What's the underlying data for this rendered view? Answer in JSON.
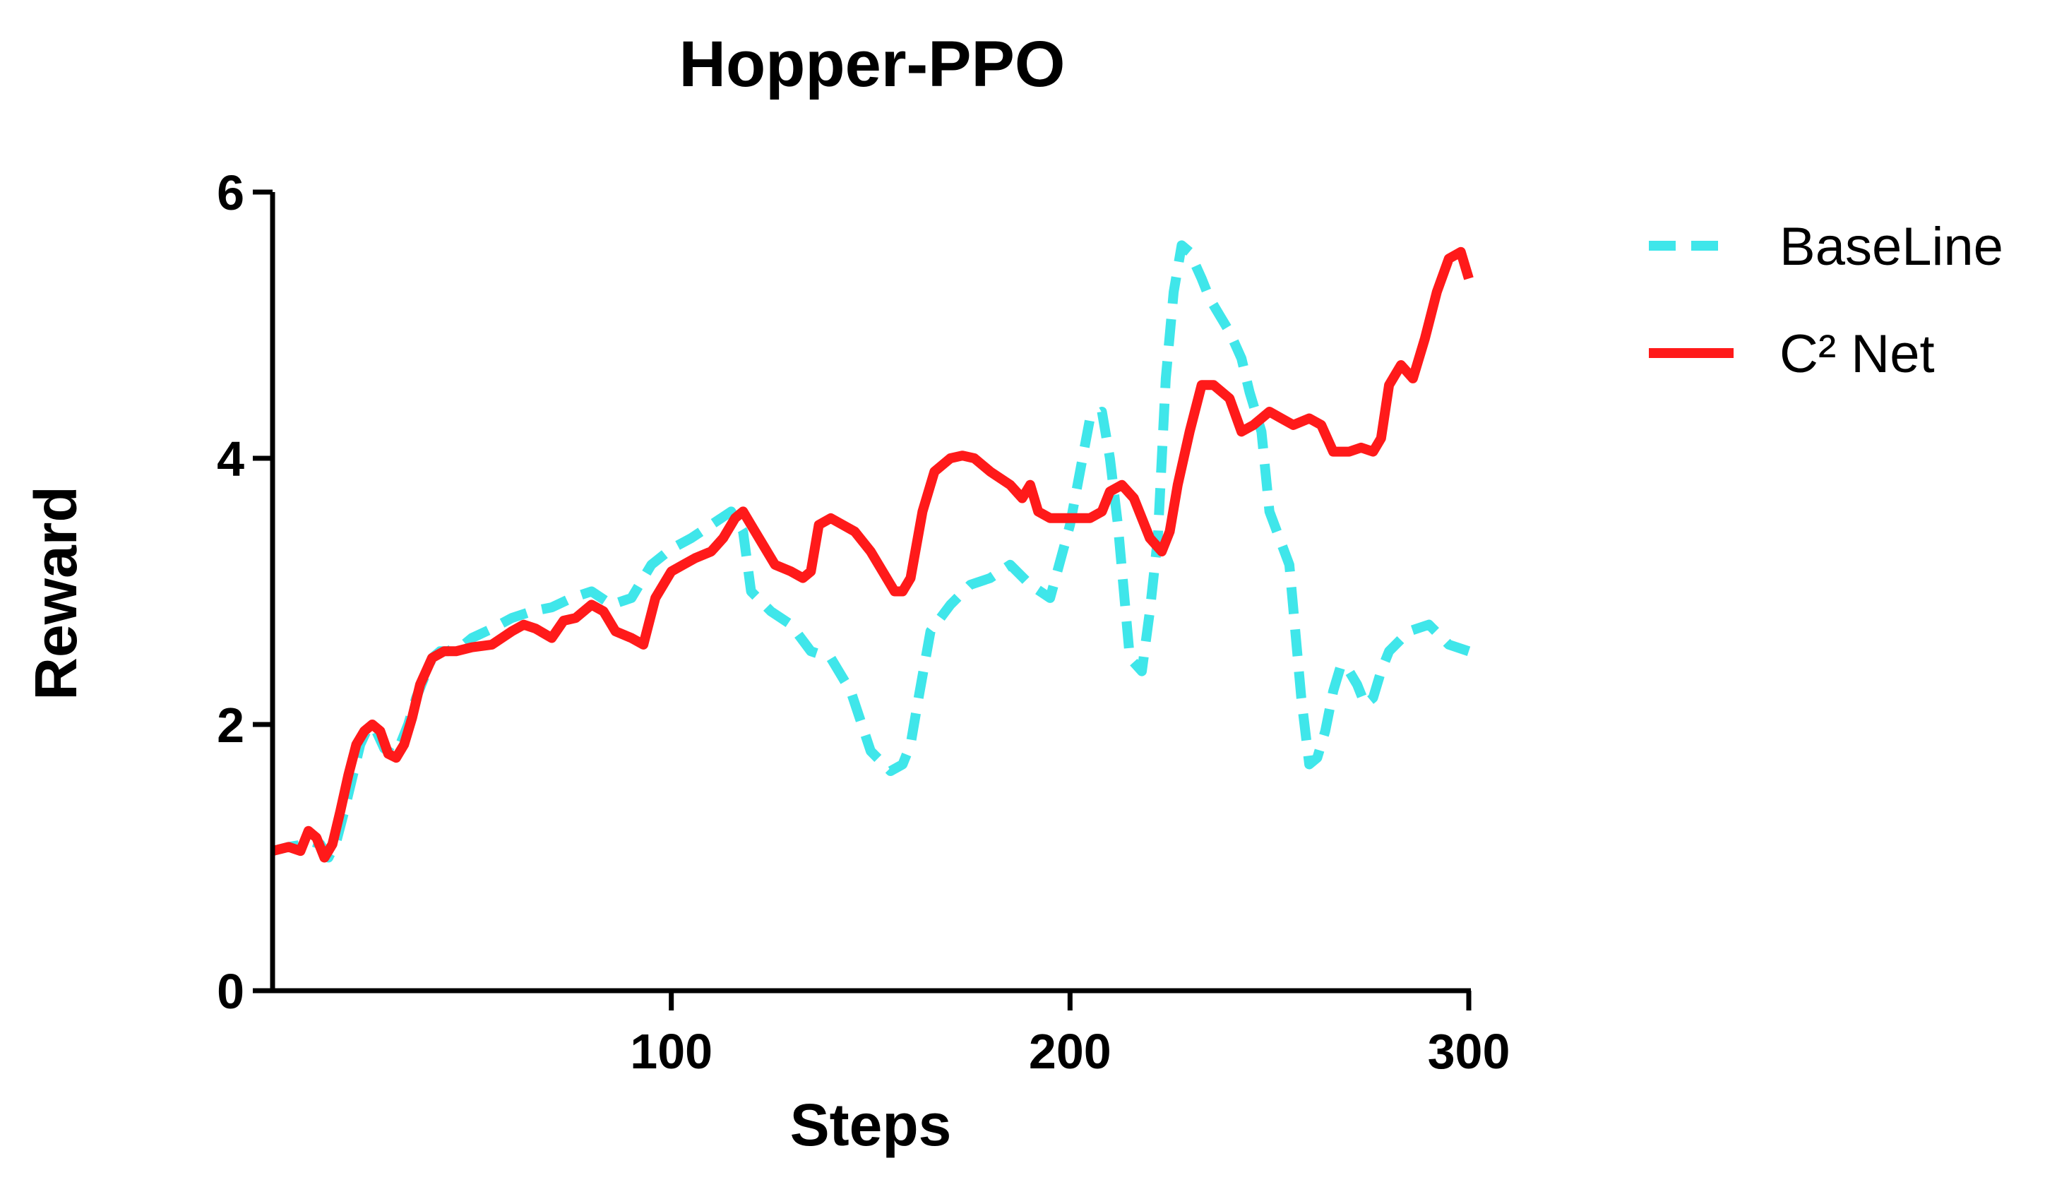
{
  "chart_data": {
    "type": "line",
    "title": "Hopper-PPO",
    "xlabel": "Steps",
    "ylabel": "Reward",
    "xlim": [
      0,
      300
    ],
    "ylim": [
      0,
      6
    ],
    "xticks": [
      100,
      200,
      300
    ],
    "yticks": [
      0,
      2,
      4,
      6
    ],
    "grid": false,
    "legend_position": "right",
    "series": [
      {
        "name": "BaseLine",
        "color": "#3FE6EA",
        "style": "dashed",
        "x": [
          0,
          4,
          8,
          10,
          12,
          14,
          16,
          18,
          20,
          22,
          24,
          26,
          28,
          30,
          32,
          34,
          36,
          38,
          40,
          42,
          44,
          46,
          48,
          50,
          55,
          60,
          65,
          70,
          75,
          80,
          85,
          90,
          95,
          100,
          105,
          110,
          115,
          118,
          120,
          125,
          130,
          135,
          140,
          145,
          150,
          155,
          158,
          160,
          162,
          165,
          170,
          175,
          180,
          185,
          190,
          195,
          200,
          205,
          208,
          210,
          212,
          215,
          218,
          220,
          222,
          224,
          226,
          228,
          230,
          233,
          235,
          238,
          240,
          243,
          245,
          248,
          250,
          255,
          258,
          260,
          262,
          264,
          266,
          268,
          270,
          272,
          274,
          276,
          278,
          280,
          285,
          290,
          295,
          300
        ],
        "y": [
          1.05,
          1.08,
          1.1,
          1.12,
          1.1,
          1.0,
          1.12,
          1.35,
          1.6,
          1.85,
          1.98,
          1.95,
          1.82,
          1.78,
          1.85,
          2.0,
          2.2,
          2.35,
          2.5,
          2.55,
          2.55,
          2.58,
          2.6,
          2.65,
          2.72,
          2.8,
          2.85,
          2.88,
          2.95,
          3.0,
          2.9,
          2.95,
          3.2,
          3.32,
          3.4,
          3.5,
          3.6,
          3.45,
          3.0,
          2.85,
          2.75,
          2.55,
          2.5,
          2.25,
          1.8,
          1.65,
          1.7,
          1.85,
          2.2,
          2.7,
          2.9,
          3.05,
          3.1,
          3.2,
          3.05,
          2.95,
          3.5,
          4.3,
          4.35,
          4.0,
          3.5,
          2.5,
          2.4,
          2.85,
          3.4,
          4.6,
          5.25,
          5.6,
          5.55,
          5.35,
          5.2,
          5.05,
          4.95,
          4.75,
          4.5,
          4.2,
          3.6,
          3.2,
          2.2,
          1.7,
          1.75,
          1.95,
          2.25,
          2.45,
          2.4,
          2.3,
          2.15,
          2.2,
          2.4,
          2.55,
          2.7,
          2.75,
          2.6,
          2.55
        ]
      },
      {
        "name": "C² Net",
        "color": "#FF1A1A",
        "style": "solid",
        "x": [
          0,
          4,
          7,
          9,
          11,
          13,
          15,
          17,
          19,
          21,
          23,
          25,
          27,
          29,
          31,
          33,
          35,
          37,
          40,
          43,
          46,
          50,
          55,
          60,
          63,
          66,
          70,
          73,
          76,
          80,
          83,
          86,
          90,
          93,
          96,
          100,
          103,
          106,
          110,
          113,
          116,
          118,
          120,
          123,
          126,
          130,
          133,
          135,
          137,
          140,
          143,
          146,
          150,
          153,
          156,
          158,
          160,
          163,
          166,
          170,
          173,
          176,
          180,
          185,
          188,
          190,
          192,
          195,
          198,
          200,
          205,
          208,
          210,
          213,
          216,
          220,
          223,
          225,
          227,
          230,
          233,
          236,
          240,
          243,
          246,
          250,
          253,
          256,
          260,
          263,
          266,
          270,
          273,
          276,
          278,
          280,
          283,
          286,
          289,
          292,
          295,
          298,
          300
        ],
        "y": [
          1.05,
          1.08,
          1.05,
          1.2,
          1.15,
          1.0,
          1.1,
          1.35,
          1.62,
          1.85,
          1.95,
          2.0,
          1.95,
          1.78,
          1.75,
          1.85,
          2.05,
          2.3,
          2.5,
          2.55,
          2.55,
          2.58,
          2.6,
          2.7,
          2.75,
          2.72,
          2.65,
          2.78,
          2.8,
          2.9,
          2.85,
          2.7,
          2.65,
          2.6,
          2.95,
          3.15,
          3.2,
          3.25,
          3.3,
          3.4,
          3.55,
          3.6,
          3.5,
          3.35,
          3.2,
          3.15,
          3.1,
          3.15,
          3.5,
          3.55,
          3.5,
          3.45,
          3.3,
          3.15,
          3.0,
          3.0,
          3.1,
          3.6,
          3.9,
          4.0,
          4.02,
          4.0,
          3.9,
          3.8,
          3.7,
          3.8,
          3.6,
          3.55,
          3.55,
          3.55,
          3.55,
          3.6,
          3.75,
          3.8,
          3.7,
          3.4,
          3.3,
          3.45,
          3.8,
          4.2,
          4.55,
          4.55,
          4.45,
          4.2,
          4.25,
          4.35,
          4.3,
          4.25,
          4.3,
          4.25,
          4.05,
          4.05,
          4.08,
          4.05,
          4.15,
          4.55,
          4.7,
          4.6,
          4.9,
          5.25,
          5.5,
          5.55,
          5.35
        ]
      }
    ]
  }
}
